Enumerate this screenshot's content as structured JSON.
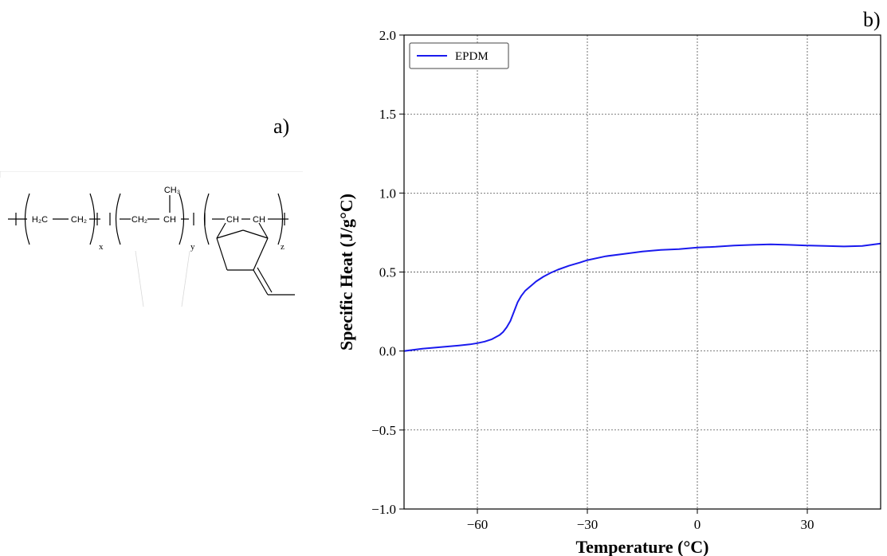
{
  "panels": {
    "a_label": "a)",
    "b_label": "b)"
  },
  "structure": {
    "groups": [
      {
        "atoms": [
          "H₂C",
          "CH₂"
        ],
        "subscript": "x"
      },
      {
        "atoms": [
          "CH₂",
          "CH"
        ],
        "substituent": "CH₃",
        "subscript": "y"
      },
      {
        "atoms": [
          "CH",
          "CH"
        ],
        "subscript": "z"
      }
    ]
  },
  "chart_data": {
    "type": "line",
    "title": "",
    "xlabel": "Temperature (°C)",
    "ylabel": "Specific Heat (J/g°C)",
    "xlim": [
      -80,
      50
    ],
    "ylim": [
      -1.0,
      2.0
    ],
    "xticks": [
      -60,
      -30,
      0,
      30
    ],
    "xtick_labels": [
      "−60",
      "−30",
      "0",
      "30"
    ],
    "yticks": [
      -1.0,
      -0.5,
      0.0,
      0.5,
      1.0,
      1.5,
      2.0
    ],
    "ytick_labels": [
      "−1.0",
      "−0.5",
      "0.0",
      "0.5",
      "1.0",
      "1.5",
      "2.0"
    ],
    "grid": true,
    "legend_position": "top-left",
    "series": [
      {
        "name": "EPDM",
        "color": "#1a1aee",
        "x": [
          -80,
          -75,
          -70,
          -65,
          -62,
          -60,
          -58,
          -56,
          -54,
          -53,
          -52,
          -51,
          -50,
          -49,
          -48,
          -47,
          -46,
          -45,
          -44,
          -42,
          -40,
          -38,
          -35,
          -32,
          -30,
          -25,
          -20,
          -15,
          -10,
          -5,
          0,
          5,
          10,
          15,
          20,
          25,
          30,
          35,
          40,
          45,
          50
        ],
        "y": [
          0.0,
          0.015,
          0.025,
          0.035,
          0.042,
          0.05,
          0.06,
          0.075,
          0.1,
          0.12,
          0.15,
          0.19,
          0.25,
          0.31,
          0.35,
          0.38,
          0.4,
          0.42,
          0.44,
          0.47,
          0.495,
          0.515,
          0.54,
          0.56,
          0.575,
          0.6,
          0.615,
          0.63,
          0.64,
          0.645,
          0.655,
          0.66,
          0.668,
          0.672,
          0.675,
          0.672,
          0.668,
          0.665,
          0.662,
          0.665,
          0.68
        ]
      }
    ]
  }
}
